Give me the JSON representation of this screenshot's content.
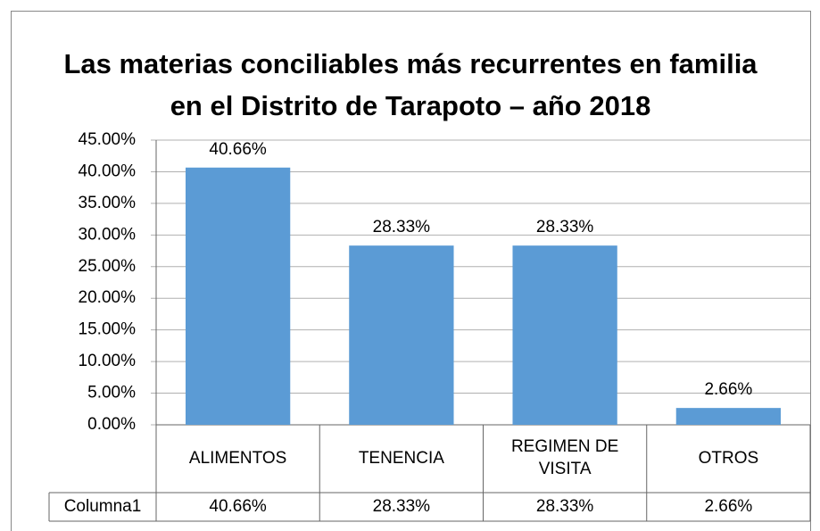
{
  "chart_data": {
    "type": "bar",
    "title": "Las materias conciliables más recurrentes en familia en el Distrito de Tarapoto – año 2018",
    "categories": [
      "ALIMENTOS",
      "TENENCIA",
      "REGIMEN DE VISITA",
      "OTROS"
    ],
    "values": [
      40.66,
      28.33,
      28.33,
      2.66
    ],
    "value_labels": [
      "40.66%",
      "28.33%",
      "28.33%",
      "2.66%"
    ],
    "color": "#5b9bd5",
    "ylim": [
      0,
      45
    ],
    "yticks": [
      {
        "value": 0,
        "label": "0.00%"
      },
      {
        "value": 5,
        "label": "5.00%"
      },
      {
        "value": 10,
        "label": "10.00%"
      },
      {
        "value": 15,
        "label": "15.00%"
      },
      {
        "value": 20,
        "label": "20.00%"
      },
      {
        "value": 25,
        "label": "25.00%"
      },
      {
        "value": 30,
        "label": "30.00%"
      },
      {
        "value": 35,
        "label": "35.00%"
      },
      {
        "value": 40,
        "label": "40.00%"
      },
      {
        "value": 45,
        "label": "45.00%"
      }
    ],
    "grid": true,
    "data_table": {
      "row_label": "Columna1"
    }
  }
}
